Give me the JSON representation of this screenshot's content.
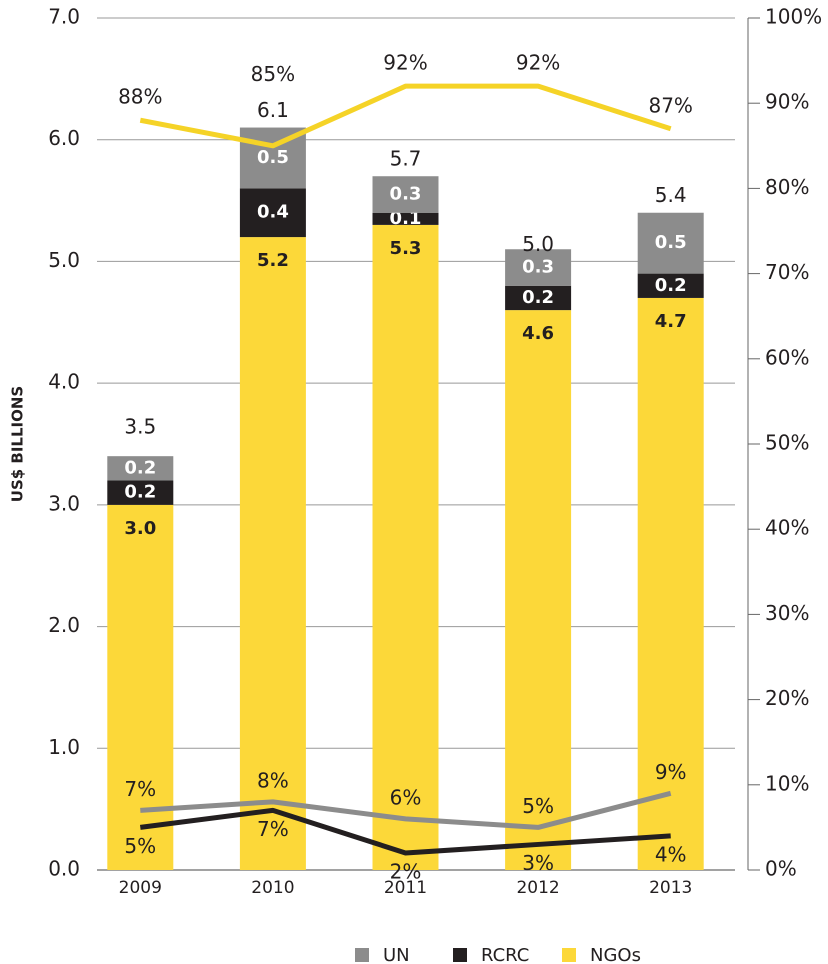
{
  "chart_data": {
    "type": "bar",
    "stacked": true,
    "ylabel": "US$ BILLIONS",
    "categories": [
      "2009",
      "2010",
      "2011",
      "2012",
      "2013"
    ],
    "series": [
      {
        "name": "NGOs",
        "color": "#fcd839",
        "values": [
          3.0,
          5.2,
          5.3,
          4.6,
          4.7
        ],
        "value_labels": [
          "3.0",
          "5.2",
          "5.3",
          "4.6",
          "4.7"
        ],
        "line_color": "#f5d327",
        "share": [
          88,
          85,
          92,
          92,
          87
        ],
        "share_labels": [
          "88%",
          "85%",
          "92%",
          "92%",
          "87%"
        ],
        "axis": "y2"
      },
      {
        "name": "RCRC",
        "color": "#231f20",
        "values": [
          0.2,
          0.4,
          0.1,
          0.2,
          0.2
        ],
        "value_labels": [
          "0.2",
          "0.4",
          "0.1",
          "0.2",
          "0.2"
        ],
        "line_color": "#231f20",
        "share": [
          5,
          7,
          2,
          3,
          4
        ],
        "share_labels": [
          "5%",
          "7%",
          "2%",
          "3%",
          "4%"
        ],
        "axis": "y2"
      },
      {
        "name": "UN",
        "color": "#8c8c8c",
        "values": [
          0.2,
          0.5,
          0.3,
          0.3,
          0.5
        ],
        "value_labels": [
          "0.2",
          "0.5",
          "0.3",
          "0.3",
          "0.5"
        ],
        "line_color": "#8c8c8c",
        "share": [
          7,
          8,
          6,
          5,
          9
        ],
        "share_labels": [
          "7%",
          "8%",
          "6%",
          "5%",
          "9%"
        ],
        "axis": "y2"
      }
    ],
    "totals": [
      3.5,
      6.1,
      5.7,
      5.0,
      5.4
    ],
    "total_labels": [
      "3.5",
      "6.1",
      "5.7",
      "5.0",
      "5.4"
    ],
    "legend_order": [
      "UN",
      "RCRC",
      "NGOs"
    ],
    "ylim": [
      0,
      7
    ],
    "yticks": [
      {
        "value": 0,
        "label": "0.0"
      },
      {
        "value": 1,
        "label": "1.0"
      },
      {
        "value": 2,
        "label": "2.0"
      },
      {
        "value": 3,
        "label": "3.0"
      },
      {
        "value": 4,
        "label": "4.0"
      },
      {
        "value": 5,
        "label": "5.0"
      },
      {
        "value": 6,
        "label": "6.0"
      },
      {
        "value": 7,
        "label": "7.0"
      }
    ],
    "y2lim": [
      0,
      100
    ],
    "y2ticks": [
      {
        "value": 0,
        "label": "0%"
      },
      {
        "value": 10,
        "label": "10%"
      },
      {
        "value": 20,
        "label": "20%"
      },
      {
        "value": 30,
        "label": "30%"
      },
      {
        "value": 40,
        "label": "40%"
      },
      {
        "value": 50,
        "label": "50%"
      },
      {
        "value": 60,
        "label": "60%"
      },
      {
        "value": 70,
        "label": "70%"
      },
      {
        "value": 80,
        "label": "80%"
      },
      {
        "value": 90,
        "label": "90%"
      },
      {
        "value": 100,
        "label": "100%"
      }
    ],
    "grid": true,
    "legend": "bottom"
  }
}
